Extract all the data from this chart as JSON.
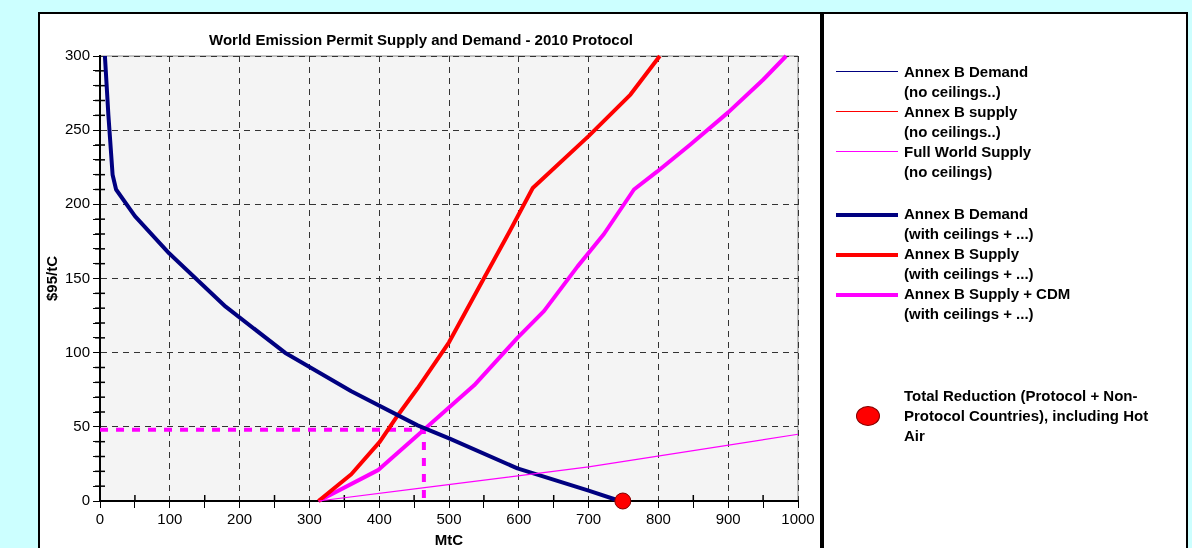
{
  "chart_data": {
    "type": "line",
    "title": "World Emission Permit Supply and Demand - 2010 Protocol",
    "xlabel": "MtC",
    "ylabel": "$95/tC",
    "xlim": [
      0,
      1000
    ],
    "ylim": [
      0,
      300
    ],
    "xticks": [
      0,
      {
        "value": 50,
        "label": null
      },
      100,
      {
        "value": 150,
        "label": null
      },
      200,
      {
        "value": 250,
        "label": null
      },
      300,
      {
        "value": 350,
        "label": null
      },
      400,
      {
        "value": 450,
        "label": null
      },
      500,
      {
        "value": 550,
        "label": null
      },
      600,
      {
        "value": 650,
        "label": null
      },
      700,
      {
        "value": 750,
        "label": null
      },
      800,
      {
        "value": 850,
        "label": null
      },
      900,
      {
        "value": 950,
        "label": null
      },
      1000
    ],
    "yticks": [
      0,
      {
        "value": 10,
        "label": null
      },
      {
        "value": 20,
        "label": null
      },
      {
        "value": 30,
        "label": null
      },
      {
        "value": 40,
        "label": null
      },
      50,
      {
        "value": 60,
        "label": null
      },
      {
        "value": 70,
        "label": null
      },
      {
        "value": 80,
        "label": null
      },
      {
        "value": 90,
        "label": null
      },
      100,
      {
        "value": 110,
        "label": null
      },
      {
        "value": 120,
        "label": null
      },
      {
        "value": 130,
        "label": null
      },
      {
        "value": 140,
        "label": null
      },
      150,
      {
        "value": 160,
        "label": null
      },
      {
        "value": 170,
        "label": null
      },
      {
        "value": 180,
        "label": null
      },
      {
        "value": 190,
        "label": null
      },
      200,
      {
        "value": 210,
        "label": null
      },
      {
        "value": 220,
        "label": null
      },
      {
        "value": 230,
        "label": null
      },
      {
        "value": 240,
        "label": null
      },
      250,
      {
        "value": 260,
        "label": null
      },
      {
        "value": 270,
        "label": null
      },
      {
        "value": 280,
        "label": null
      },
      {
        "value": 290,
        "label": null
      },
      300
    ],
    "grid": true,
    "legend": "right",
    "marker": "none",
    "line_style": "solid",
    "series": [
      {
        "name": "Annex B Demand\n(no ceilings..)",
        "color": "#000080"
      },
      {
        "name": "Annex B supply\n(no ceilings..)",
        "color": "#ff0000"
      },
      {
        "name": "Full World Supply\n(no ceilings)",
        "color": "#ff00ff",
        "x": [
          313,
          465,
          700,
          1000
        ],
        "values": [
          0,
          9,
          23,
          45
        ]
      },
      {
        "name": "Annex B Demand\n(with ceilings + ...)",
        "color": "#000080",
        "x": [
          7,
          12,
          18,
          23,
          50,
          99,
          180,
          265,
          360,
          455,
          501,
          598,
          700,
          745
        ],
        "values": [
          300,
          260,
          220,
          210,
          192,
          167,
          131,
          100,
          74,
          51,
          42,
          22,
          7,
          0
        ]
      },
      {
        "name": "Annex B Supply\n(with ceilings + ...)",
        "color": "#ff0000",
        "x": [
          313,
          360,
          401,
          427,
          455,
          500,
          551,
          586,
          620,
          700,
          760,
          802
        ],
        "values": [
          0,
          18,
          40,
          58,
          76,
          107,
          151,
          181,
          211,
          246,
          274,
          300
        ]
      },
      {
        "name": "Annex B Supply + CDM\n(with ceilings + ...)",
        "color": "#ff00ff",
        "x": [
          313,
          399,
          464,
          536,
          598,
          636,
          684,
          722,
          765,
          798,
          845,
          900,
          950,
          983
        ],
        "values": [
          0,
          21,
          48,
          78,
          110,
          128,
          158,
          180,
          210,
          222,
          240,
          262,
          284,
          300
        ]
      },
      {
        "color": "#ff00ff",
        "line_style": "dashed",
        "x": [
          0,
          464,
          464
        ],
        "values": [
          48,
          48,
          0
        ]
      },
      {
        "name": "Total Reduction (Protocol + Non-Protocol Countries), including Hot Air",
        "type": "scatter",
        "marker": "circle",
        "color": "#ff0000",
        "x": [
          749
        ],
        "values": [
          0
        ]
      }
    ]
  }
}
